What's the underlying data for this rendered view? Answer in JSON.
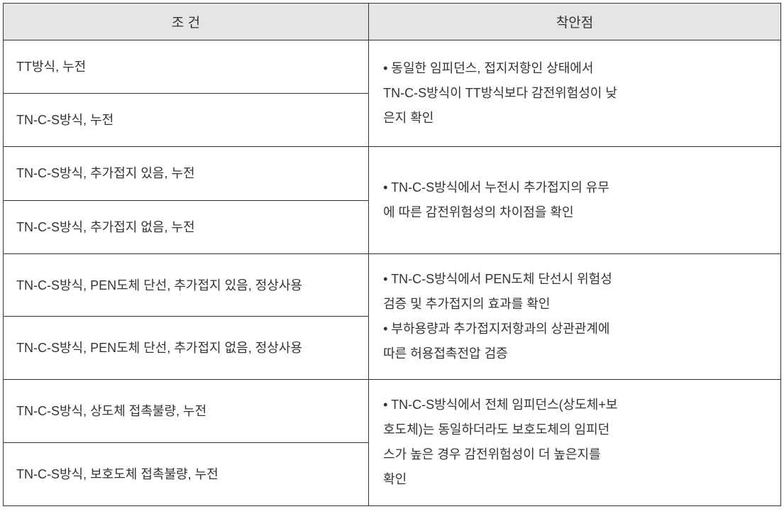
{
  "headers": {
    "condition": "조  건",
    "point": "착안점"
  },
  "rows": {
    "r1_cond": "TT방식, 누전",
    "r2_cond": "TN-C-S방식, 누전",
    "g1_point_l1": "• 동일한  임피던스,  접지저항인  상태에서",
    "g1_point_l2": "TN-C-S방식이 TT방식보다 감전위험성이 낮",
    "g1_point_l3": "은지 확인",
    "r3_cond": "TN-C-S방식, 추가접지 있음, 누전",
    "r4_cond": "TN-C-S방식, 추가접지 없음, 누전",
    "g2_point_l1": "• TN-C-S방식에서  누전시  추가접지의  유무",
    "g2_point_l2": "에 따른 감전위험성의 차이점을 확인",
    "r5_cond": "TN-C-S방식,  PEN도체  단선,  추가접지  있음, 정상사용",
    "r6_cond": "TN-C-S방식,  PEN도체  단선,  추가접지  없음, 정상사용",
    "g3_point_l1": "• TN-C-S방식에서  PEN도체  단선시  위험성",
    "g3_point_l2": "검증 및 추가접지의 효과를 확인",
    "g3_point_l3": "• 부하용량과  추가접지저항과의  상관관계에",
    "g3_point_l4": "따른 허용접촉전압 검증",
    "r7_cond": "TN-C-S방식, 상도체 접촉불량, 누전",
    "r8_cond": "TN-C-S방식, 보호도체 접촉불량, 누전",
    "g4_point_l1": "• TN-C-S방식에서 전체 임피던스(상도체+보",
    "g4_point_l2": "호도체)는 동일하더라도 보호도체의 임피던",
    "g4_point_l3": "스가  높은  경우  감전위험성이  더  높은지를",
    "g4_point_l4": "확인"
  }
}
